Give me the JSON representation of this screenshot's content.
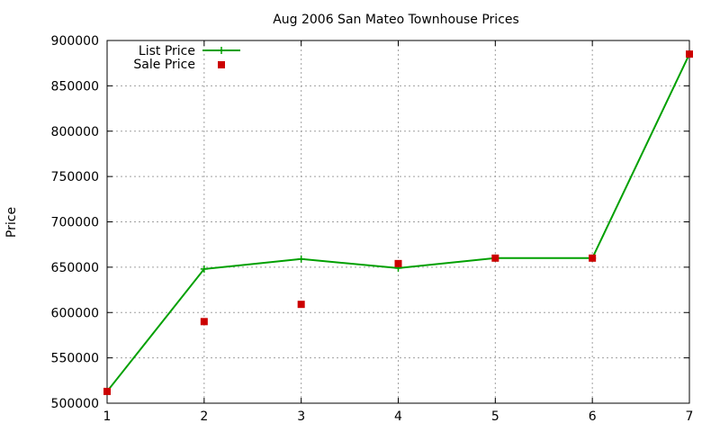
{
  "chart_data": {
    "type": "line",
    "title": "Aug 2006 San Mateo Townhouse Prices",
    "xlabel": "",
    "ylabel": "Price",
    "x": [
      1,
      2,
      3,
      4,
      5,
      6,
      7
    ],
    "xlim": [
      1,
      7
    ],
    "ylim": [
      500000,
      900000
    ],
    "x_ticks": [
      "1",
      "2",
      "3",
      "4",
      "5",
      "6",
      "7"
    ],
    "y_ticks": [
      "500000",
      "550000",
      "600000",
      "650000",
      "700000",
      "750000",
      "800000",
      "850000",
      "900000"
    ],
    "grid": true,
    "legend_position": "top-left",
    "series": [
      {
        "name": "List Price",
        "style": "line+cross",
        "color": "#00a000",
        "values": [
          513000,
          648000,
          659000,
          649000,
          660000,
          660000,
          885000
        ]
      },
      {
        "name": "Sale Price",
        "style": "square-points",
        "color": "#cc0000",
        "values": [
          513000,
          590000,
          609000,
          654000,
          660000,
          660000,
          885000
        ]
      }
    ]
  }
}
